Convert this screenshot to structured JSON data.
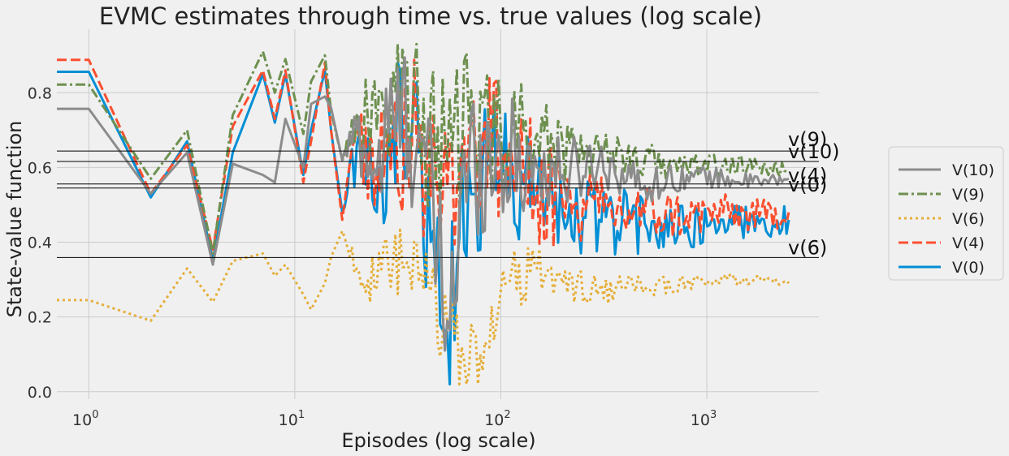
{
  "chart_data": {
    "type": "line",
    "title": "EVMC estimates through time vs. true values (log scale)",
    "xlabel": "Episodes (log scale)",
    "ylabel": "State-value function",
    "xscale": "log",
    "xlim": [
      0.7,
      3500
    ],
    "ylim": [
      -0.02,
      0.97
    ],
    "x_ticks": [
      {
        "value": 1,
        "base": "10",
        "exp": "0"
      },
      {
        "value": 10,
        "base": "10",
        "exp": "1"
      },
      {
        "value": 100,
        "base": "10",
        "exp": "2"
      },
      {
        "value": 1000,
        "base": "10",
        "exp": "3"
      }
    ],
    "y_ticks": [
      {
        "value": 0.0,
        "label": "0.0"
      },
      {
        "value": 0.2,
        "label": "0.2"
      },
      {
        "value": 0.4,
        "label": "0.4"
      },
      {
        "value": 0.6,
        "label": "0.6"
      },
      {
        "value": 0.8,
        "label": "0.8"
      }
    ],
    "grid": true,
    "legend_position": "outside-right",
    "series": [
      {
        "name": "V(10)",
        "color": "#8c8c8c",
        "dash": "solid",
        "x": [
          0.7,
          1,
          2,
          3,
          4,
          5,
          7,
          8,
          9,
          11,
          12,
          14,
          15,
          17,
          20,
          25,
          30,
          40,
          55,
          70,
          100,
          150,
          200,
          300,
          500,
          800,
          1200,
          1800,
          2500
        ],
        "y": [
          0.757,
          0.757,
          0.53,
          0.64,
          0.34,
          0.61,
          0.58,
          0.56,
          0.73,
          0.6,
          0.77,
          0.79,
          0.76,
          0.62,
          0.7,
          0.58,
          0.74,
          0.7,
          0.19,
          0.62,
          0.63,
          0.6,
          0.58,
          0.62,
          0.55,
          0.58,
          0.57,
          0.56,
          0.57
        ],
        "noise": [
          0,
          0,
          0,
          0,
          0,
          0,
          0,
          0,
          0,
          0,
          0,
          0,
          0,
          0,
          0.1,
          0.15,
          0.2,
          0.24,
          0.26,
          0.22,
          0.18,
          0.14,
          0.1,
          0.07,
          0.05,
          0.035,
          0.025,
          0.02,
          0.015
        ]
      },
      {
        "name": "V(9)",
        "color": "#6d904f",
        "dash": "dashdot",
        "x": [
          0.7,
          1,
          2,
          3,
          4,
          5,
          7,
          8,
          9,
          11,
          12,
          14,
          15,
          17,
          20,
          25,
          30,
          40,
          55,
          70,
          100,
          150,
          200,
          300,
          500,
          800,
          1200,
          1800,
          2500
        ],
        "y": [
          0.822,
          0.822,
          0.57,
          0.7,
          0.37,
          0.74,
          0.91,
          0.8,
          0.89,
          0.69,
          0.83,
          0.9,
          0.75,
          0.62,
          0.74,
          0.7,
          0.86,
          0.72,
          0.62,
          0.72,
          0.7,
          0.69,
          0.66,
          0.65,
          0.62,
          0.6,
          0.61,
          0.6,
          0.59
        ],
        "noise": [
          0,
          0,
          0,
          0,
          0,
          0,
          0,
          0,
          0,
          0,
          0,
          0,
          0,
          0,
          0.1,
          0.15,
          0.2,
          0.22,
          0.22,
          0.2,
          0.17,
          0.13,
          0.1,
          0.07,
          0.05,
          0.035,
          0.03,
          0.025,
          0.02
        ]
      },
      {
        "name": "V(6)",
        "color": "#e5ae38",
        "dash": "dotted",
        "x": [
          0.7,
          1,
          2,
          3,
          4,
          5,
          7,
          8,
          9,
          11,
          12,
          14,
          15,
          17,
          20,
          25,
          30,
          40,
          55,
          70,
          100,
          150,
          200,
          300,
          500,
          800,
          1200,
          1800,
          2500
        ],
        "y": [
          0.245,
          0.245,
          0.19,
          0.33,
          0.24,
          0.35,
          0.37,
          0.31,
          0.34,
          0.26,
          0.22,
          0.29,
          0.36,
          0.43,
          0.33,
          0.28,
          0.35,
          0.3,
          0.18,
          0.05,
          0.27,
          0.33,
          0.29,
          0.27,
          0.28,
          0.29,
          0.3,
          0.3,
          0.29
        ],
        "noise": [
          0,
          0,
          0,
          0,
          0,
          0,
          0,
          0,
          0,
          0,
          0,
          0,
          0,
          0,
          0.06,
          0.08,
          0.1,
          0.12,
          0.14,
          0.12,
          0.1,
          0.07,
          0.05,
          0.04,
          0.03,
          0.02,
          0.015,
          0.012,
          0.01
        ]
      },
      {
        "name": "V(4)",
        "color": "#fc4f30",
        "dash": "dashed",
        "x": [
          0.7,
          1,
          2,
          3,
          4,
          5,
          7,
          8,
          9,
          11,
          12,
          14,
          15,
          17,
          20,
          25,
          30,
          40,
          55,
          70,
          100,
          150,
          200,
          300,
          500,
          800,
          1200,
          1800,
          2500
        ],
        "y": [
          0.888,
          0.888,
          0.53,
          0.66,
          0.38,
          0.71,
          0.86,
          0.73,
          0.86,
          0.56,
          0.67,
          0.88,
          0.7,
          0.46,
          0.7,
          0.59,
          0.72,
          0.65,
          0.55,
          0.7,
          0.64,
          0.55,
          0.5,
          0.48,
          0.48,
          0.47,
          0.48,
          0.47,
          0.48
        ],
        "noise": [
          0,
          0,
          0,
          0,
          0,
          0,
          0,
          0,
          0,
          0,
          0,
          0,
          0,
          0,
          0.1,
          0.15,
          0.2,
          0.24,
          0.26,
          0.24,
          0.2,
          0.16,
          0.13,
          0.1,
          0.08,
          0.06,
          0.05,
          0.045,
          0.04
        ]
      },
      {
        "name": "V(0)",
        "color": "#008fd5",
        "dash": "solid",
        "x": [
          0.7,
          1,
          2,
          3,
          4,
          5,
          7,
          8,
          9,
          11,
          12,
          14,
          15,
          17,
          20,
          25,
          30,
          40,
          55,
          70,
          100,
          150,
          200,
          300,
          500,
          800,
          1200,
          1800,
          2500
        ],
        "y": [
          0.856,
          0.856,
          0.52,
          0.67,
          0.35,
          0.64,
          0.85,
          0.72,
          0.85,
          0.58,
          0.7,
          0.86,
          0.7,
          0.48,
          0.66,
          0.48,
          0.72,
          0.64,
          0.16,
          0.6,
          0.58,
          0.52,
          0.47,
          0.46,
          0.45,
          0.44,
          0.46,
          0.45,
          0.46
        ],
        "noise": [
          0,
          0,
          0,
          0,
          0,
          0,
          0,
          0,
          0,
          0,
          0,
          0,
          0,
          0,
          0.1,
          0.15,
          0.2,
          0.24,
          0.26,
          0.24,
          0.2,
          0.16,
          0.13,
          0.1,
          0.08,
          0.06,
          0.05,
          0.045,
          0.04
        ]
      }
    ],
    "true_values": [
      {
        "label": "v(9)",
        "value": 0.644
      },
      {
        "label": "v(10)",
        "value": 0.616
      },
      {
        "label": "v(4)",
        "value": 0.556
      },
      {
        "label": "v(0)",
        "value": 0.545
      },
      {
        "label": "v(6)",
        "value": 0.359
      }
    ],
    "legend": [
      "V(10)",
      "V(9)",
      "V(6)",
      "V(4)",
      "V(0)"
    ]
  }
}
